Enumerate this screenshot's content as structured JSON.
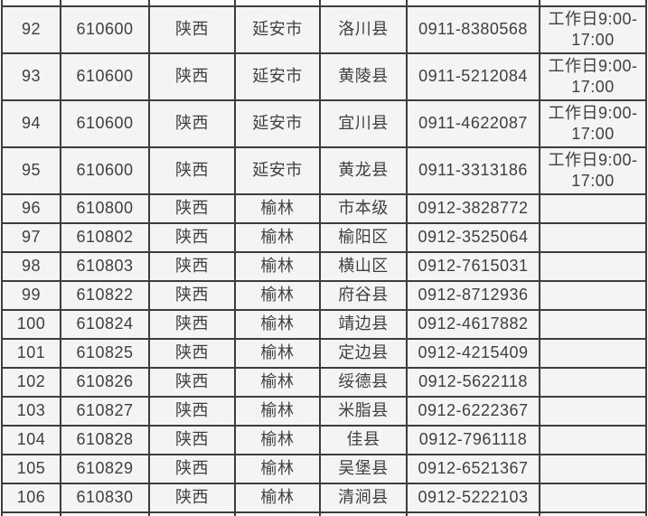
{
  "colors": {
    "page_background": "#ffffff",
    "cell_background": "#f4f4f4",
    "border": "#3d3d3d",
    "text": "#3f3f3f"
  },
  "table": {
    "cell_names": [
      "row-number",
      "area-code",
      "province",
      "city",
      "district",
      "phone-number",
      "service-hours"
    ],
    "rows": [
      {
        "cells": [
          "92",
          "610600",
          "陕西",
          "延安市",
          "洛川县",
          "0911-8380568",
          "工作日9:00-17:00"
        ]
      },
      {
        "cells": [
          "93",
          "610600",
          "陕西",
          "延安市",
          "黄陵县",
          "0911-5212084",
          "工作日9:00-17:00"
        ]
      },
      {
        "cells": [
          "94",
          "610600",
          "陕西",
          "延安市",
          "宜川县",
          "0911-4622087",
          "工作日9:00-17:00"
        ]
      },
      {
        "cells": [
          "95",
          "610600",
          "陕西",
          "延安市",
          "黄龙县",
          "0911-3313186",
          "工作日9:00-17:00"
        ]
      },
      {
        "cells": [
          "96",
          "610800",
          "陕西",
          "榆林",
          "市本级",
          "0912-3828772",
          ""
        ]
      },
      {
        "cells": [
          "97",
          "610802",
          "陕西",
          "榆林",
          "榆阳区",
          "0912-3525064",
          ""
        ]
      },
      {
        "cells": [
          "98",
          "610803",
          "陕西",
          "榆林",
          "横山区",
          "0912-7615031",
          ""
        ]
      },
      {
        "cells": [
          "99",
          "610822",
          "陕西",
          "榆林",
          "府谷县",
          "0912-8712936",
          ""
        ]
      },
      {
        "cells": [
          "100",
          "610824",
          "陕西",
          "榆林",
          "靖边县",
          "0912-4617882",
          ""
        ]
      },
      {
        "cells": [
          "101",
          "610825",
          "陕西",
          "榆林",
          "定边县",
          "0912-4215409",
          ""
        ]
      },
      {
        "cells": [
          "102",
          "610826",
          "陕西",
          "榆林",
          "绥德县",
          "0912-5622118",
          ""
        ]
      },
      {
        "cells": [
          "103",
          "610827",
          "陕西",
          "榆林",
          "米脂县",
          "0912-6222367",
          ""
        ]
      },
      {
        "cells": [
          "104",
          "610828",
          "陕西",
          "榆林",
          "佳县",
          "0912-7961118",
          ""
        ]
      },
      {
        "cells": [
          "105",
          "610829",
          "陕西",
          "榆林",
          "吴堡县",
          "0912-6521367",
          ""
        ]
      },
      {
        "cells": [
          "106",
          "610830",
          "陕西",
          "榆林",
          "清涧县",
          "0912-5222103",
          ""
        ]
      }
    ]
  }
}
